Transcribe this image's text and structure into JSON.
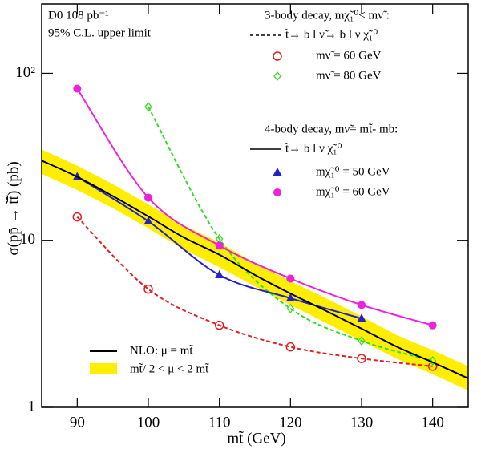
{
  "chart_data": {
    "type": "line",
    "xlabel": "mt̃ (GeV)",
    "ylabel": "σ(pp̄ → t̃t̃̄) (pb)",
    "log_y": true,
    "xlim": [
      85,
      145
    ],
    "ylim": [
      1,
      260
    ],
    "xticks": [
      90,
      100,
      110,
      120,
      130,
      140
    ],
    "yticks": [
      1,
      10,
      {
        "value": 100,
        "label": "10²"
      }
    ],
    "annotations": {
      "experiment": "D0 108 pb⁻¹",
      "limit": "95% C.L. upper limit",
      "three_body": "3-body decay, mχ̃₁⁰< mν̃ :",
      "three_body_chain": "t̃→ b l ν̃→ b l ν χ̃₁⁰",
      "four_body": "4-body decay, mν̃= mt̃- mb:",
      "four_body_chain": "t̃→ b l ν χ̃₁⁰"
    },
    "band": {
      "name": "mt̃/ 2 < μ < 2 mt̃",
      "color": "#ffee00",
      "x": [
        85,
        90,
        95,
        100,
        105,
        110,
        115,
        120,
        125,
        130,
        135,
        140,
        145
      ],
      "upper": [
        35,
        28,
        21.7,
        16.4,
        12.3,
        9.7,
        7.3,
        5.7,
        4.5,
        3.5,
        2.7,
        2.2,
        1.76
      ],
      "lower": [
        25,
        20,
        15.6,
        11.8,
        8.8,
        6.9,
        5.3,
        4.1,
        3.2,
        2.5,
        1.95,
        1.58,
        1.26
      ]
    },
    "series": [
      {
        "name": "mν̃ = 60 GeV",
        "color": "#e02020",
        "dash": true,
        "marker": "circle",
        "x": [
          90,
          100,
          110,
          120,
          130,
          140
        ],
        "values": [
          13.8,
          5.1,
          3.1,
          2.3,
          1.96,
          1.76
        ]
      },
      {
        "name": "mν̃ = 80 GeV",
        "color": "#33dd22",
        "dash": true,
        "marker": "diamond",
        "x": [
          100,
          110,
          120,
          130,
          140
        ],
        "values": [
          63,
          10.2,
          3.9,
          2.5,
          1.9
        ]
      },
      {
        "name": "mχ̃₁⁰ = 50 GeV",
        "color": "#2222cc",
        "dash": false,
        "marker": "triangle",
        "x": [
          90,
          100,
          110,
          120,
          130
        ],
        "values": [
          24,
          13,
          6.2,
          4.5,
          3.4
        ]
      },
      {
        "name": "mχ̃₁⁰ = 60 GeV",
        "color": "#ee22dd",
        "dash": false,
        "marker": "dot",
        "x": [
          90,
          100,
          110,
          120,
          130,
          140
        ],
        "values": [
          81,
          18,
          9.3,
          5.9,
          4.1,
          3.1
        ]
      },
      {
        "name": "NLO: μ = mt̃",
        "color": "#000000",
        "dash": false,
        "marker": "none",
        "x": [
          85,
          90,
          95,
          100,
          105,
          110,
          115,
          120,
          125,
          130,
          135,
          140,
          145
        ],
        "values": [
          30,
          24,
          18.4,
          13.9,
          10.4,
          8.2,
          6.2,
          4.8,
          3.78,
          2.96,
          2.3,
          1.86,
          1.49
        ]
      }
    ]
  }
}
